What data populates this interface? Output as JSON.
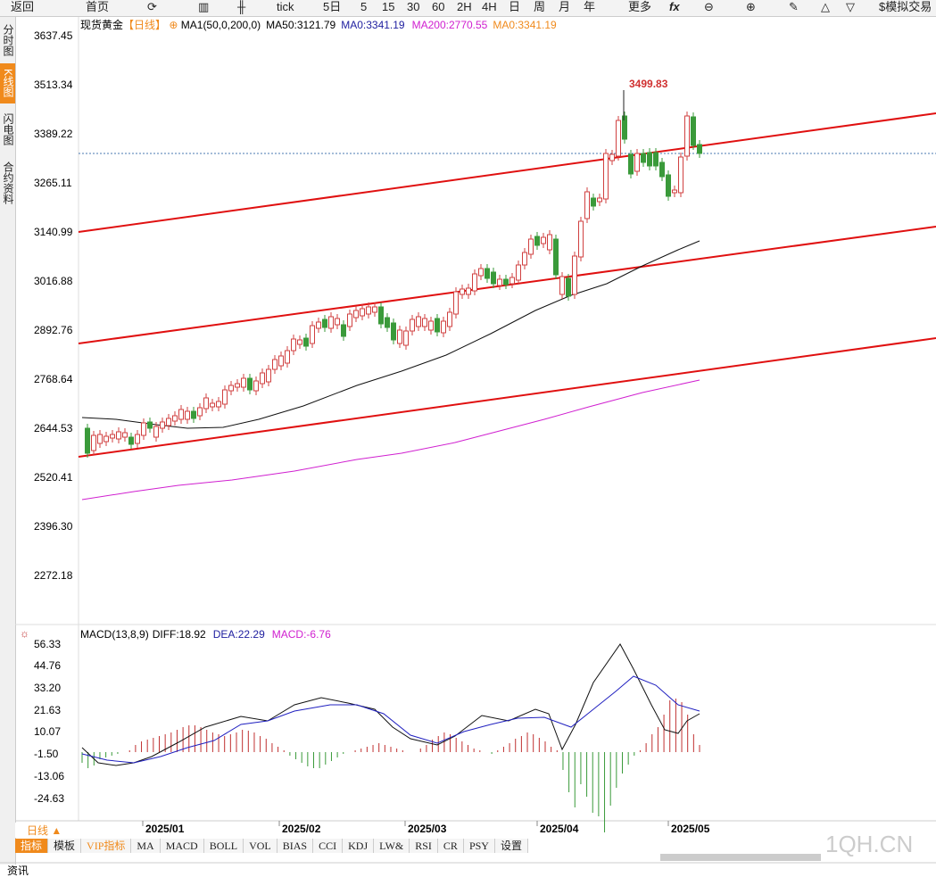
{
  "toolbar": {
    "back": "返回",
    "home": "首页",
    "tick": "tick",
    "periods": [
      "5日",
      "5",
      "15",
      "30",
      "60",
      "2H",
      "4H",
      "日",
      "周",
      "月",
      "年"
    ],
    "more": "更多",
    "fx": "fx",
    "trade": "模拟交易"
  },
  "side_tabs": [
    "分时图",
    "K线图",
    "闪电图",
    "合约资料"
  ],
  "main_legend": {
    "name": "现货黄金",
    "period": "【日线】",
    "ma": "MA1(50,0,200,0)",
    "ma50": "MA50:3121.79",
    "ma0": "MA0:3341.19",
    "ma200": "MA200:2770.55",
    "ma0b": "MA0:3341.19"
  },
  "price_axis": [
    "3637.45",
    "3513.34",
    "3389.22",
    "3265.11",
    "3140.99",
    "3016.88",
    "2892.76",
    "2768.64",
    "2644.53",
    "2520.41",
    "2396.30",
    "2272.18"
  ],
  "high_label": "3499.83",
  "macd_legend": {
    "name": "MACD(13,8,9)",
    "diff": "DIFF:18.92",
    "dea": "DEA:22.29",
    "macd": "MACD:-6.76"
  },
  "macd_axis": [
    "56.33",
    "44.76",
    "33.20",
    "21.63",
    "10.07",
    "-1.50",
    "-13.06",
    "-24.63"
  ],
  "dates": [
    "2025/01",
    "2025/02",
    "2025/03",
    "2025/04",
    "2025/05"
  ],
  "period_button": "日线 ▲",
  "bottom_tabs": [
    "指标",
    "模板",
    "VIP指标",
    "MA",
    "MACD",
    "BOLL",
    "VOL",
    "BIAS",
    "CCI",
    "KDJ",
    "LW&",
    "RSI",
    "CR",
    "PSY",
    "设置"
  ],
  "watermark": "1QH.CN",
  "footer": "资讯"
}
